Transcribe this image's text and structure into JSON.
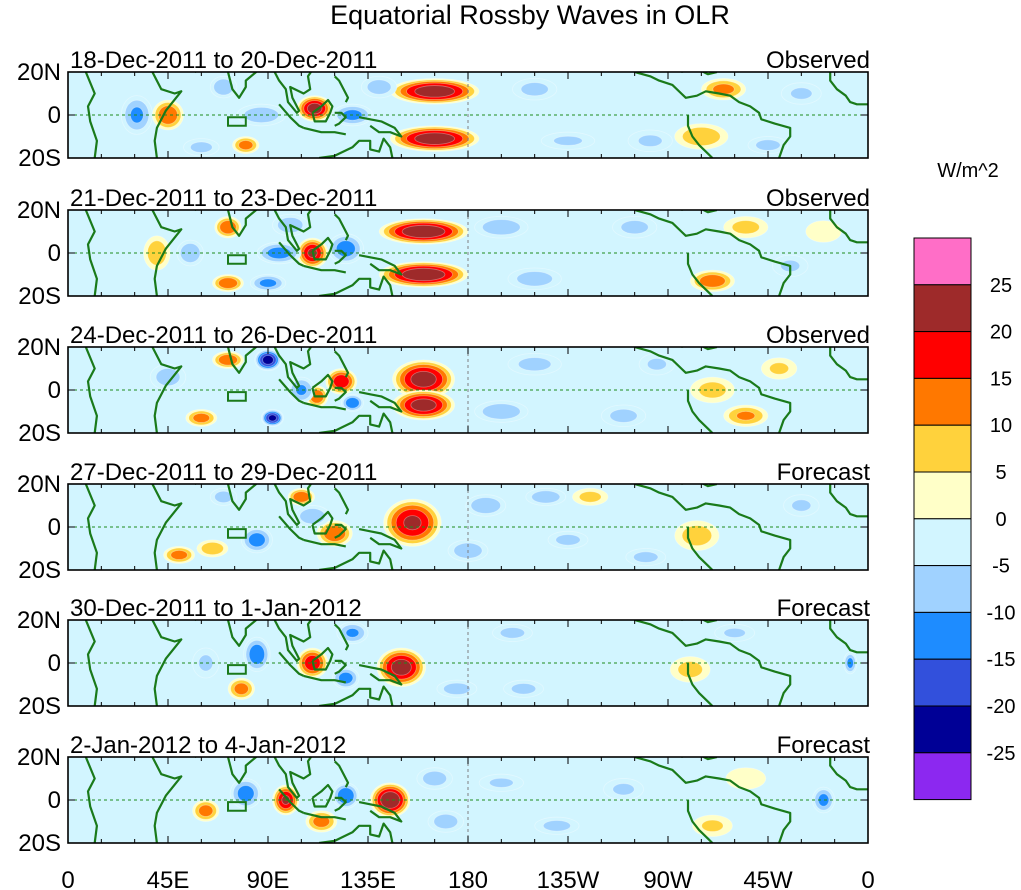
{
  "chart_data": {
    "type": "heatmap",
    "title": "Equatorial Rossby Waves in OLR",
    "units_label": "W/m^2",
    "x_ticks": [
      "0",
      "45E",
      "90E",
      "135E",
      "180",
      "135W",
      "90W",
      "45W",
      "0"
    ],
    "x_range_deg": [
      0,
      360
    ],
    "y_ticks": [
      "20N",
      "0",
      "20S"
    ],
    "y_range_deg": [
      -20,
      20
    ],
    "colorbar": {
      "levels": [
        "25",
        "20",
        "15",
        "10",
        "5",
        "0",
        "-5",
        "-10",
        "-15",
        "-20",
        "-25"
      ],
      "colors": [
        "#ff6ec7",
        "#9e2a2a",
        "#ff0000",
        "#ff7800",
        "#ffd23c",
        "#ffffc8",
        "#d2f5ff",
        "#a0d2ff",
        "#1e8cff",
        "#3250dc",
        "#000096",
        "#8c28f0"
      ]
    },
    "panels": [
      {
        "period": "18-Dec-2011 to 20-Dec-2011",
        "kind": "Observed",
        "blobs": [
          [
            165,
            11,
            20,
            6,
            23
          ],
          [
            165,
            -11,
            20,
            6,
            23
          ],
          [
            111,
            3,
            8,
            6,
            22
          ],
          [
            45,
            0,
            7,
            7,
            14
          ],
          [
            31,
            0,
            7,
            9,
            -10
          ],
          [
            70,
            13,
            6,
            5,
            -9
          ],
          [
            87,
            0,
            11,
            5,
            -8
          ],
          [
            128,
            0,
            9,
            5,
            -11
          ],
          [
            140,
            13,
            8,
            5,
            -7
          ],
          [
            60,
            -15,
            8,
            4,
            -6
          ],
          [
            80,
            -14,
            6,
            4,
            12
          ],
          [
            210,
            12,
            10,
            5,
            -6
          ],
          [
            225,
            -12,
            12,
            4,
            -5
          ],
          [
            262,
            -12,
            10,
            5,
            -5
          ],
          [
            285,
            -10,
            12,
            6,
            8
          ],
          [
            295,
            12,
            10,
            5,
            11
          ],
          [
            315,
            -14,
            9,
            4,
            -6
          ],
          [
            330,
            10,
            9,
            5,
            -5
          ]
        ]
      },
      {
        "period": "21-Dec-2011 to 23-Dec-2011",
        "kind": "Observed",
        "blobs": [
          [
            160,
            10,
            20,
            6,
            24
          ],
          [
            160,
            -10,
            20,
            6,
            24
          ],
          [
            110,
            0,
            7,
            7,
            20
          ],
          [
            40,
            0,
            6,
            8,
            8
          ],
          [
            55,
            0,
            6,
            6,
            -9
          ],
          [
            72,
            12,
            6,
            5,
            14
          ],
          [
            72,
            -14,
            7,
            4,
            14
          ],
          [
            95,
            0,
            10,
            5,
            -12
          ],
          [
            125,
            2,
            8,
            7,
            -12
          ],
          [
            90,
            -14,
            8,
            4,
            -11
          ],
          [
            100,
            13,
            8,
            5,
            -8
          ],
          [
            195,
            12,
            12,
            5,
            -8
          ],
          [
            210,
            -12,
            12,
            5,
            -7
          ],
          [
            255,
            12,
            10,
            5,
            -6
          ],
          [
            290,
            -13,
            10,
            5,
            13
          ],
          [
            305,
            12,
            10,
            5,
            6
          ],
          [
            325,
            -6,
            8,
            5,
            -5
          ],
          [
            340,
            10,
            8,
            5,
            4
          ]
        ]
      },
      {
        "period": "24-Dec-2011 to 26-Dec-2011",
        "kind": "Observed",
        "blobs": [
          [
            160,
            5,
            14,
            9,
            22
          ],
          [
            160,
            -7,
            14,
            7,
            22
          ],
          [
            123,
            4,
            7,
            6,
            18
          ],
          [
            112,
            -3,
            5,
            5,
            14
          ],
          [
            72,
            14,
            7,
            4,
            14
          ],
          [
            60,
            -13,
            7,
            4,
            12
          ],
          [
            90,
            14,
            6,
            5,
            -22
          ],
          [
            92,
            -13,
            5,
            4,
            -21
          ],
          [
            128,
            -6,
            5,
            4,
            -14
          ],
          [
            45,
            6,
            8,
            6,
            -7
          ],
          [
            105,
            0,
            6,
            6,
            -10
          ],
          [
            195,
            -10,
            12,
            5,
            -8
          ],
          [
            210,
            12,
            12,
            5,
            -6
          ],
          [
            250,
            -12,
            10,
            5,
            -6
          ],
          [
            265,
            12,
            8,
            5,
            -5
          ],
          [
            305,
            -12,
            10,
            5,
            10
          ],
          [
            290,
            0,
            10,
            6,
            6
          ],
          [
            320,
            10,
            8,
            5,
            5
          ]
        ]
      },
      {
        "period": "27-Dec-2011 to 29-Dec-2011",
        "kind": "Forecast",
        "blobs": [
          [
            155,
            2,
            13,
            11,
            20
          ],
          [
            120,
            -3,
            8,
            6,
            14
          ],
          [
            105,
            14,
            6,
            4,
            14
          ],
          [
            85,
            -6,
            7,
            6,
            -12
          ],
          [
            110,
            5,
            8,
            5,
            -8
          ],
          [
            70,
            14,
            6,
            4,
            -7
          ],
          [
            65,
            -10,
            7,
            4,
            8
          ],
          [
            50,
            -13,
            7,
            4,
            12
          ],
          [
            188,
            10,
            9,
            5,
            -9
          ],
          [
            180,
            -11,
            9,
            5,
            -8
          ],
          [
            215,
            14,
            9,
            4,
            -8
          ],
          [
            235,
            14,
            8,
            4,
            6
          ],
          [
            225,
            -6,
            9,
            4,
            -6
          ],
          [
            260,
            -14,
            9,
            4,
            -6
          ],
          [
            283,
            -4,
            10,
            7,
            7
          ],
          [
            330,
            10,
            8,
            5,
            -5
          ]
        ]
      },
      {
        "period": "30-Dec-2011 to 1-Jan-2012",
        "kind": "Forecast",
        "blobs": [
          [
            150,
            -2,
            11,
            9,
            22
          ],
          [
            110,
            0,
            7,
            7,
            18
          ],
          [
            128,
            14,
            7,
            5,
            -10
          ],
          [
            125,
            -7,
            6,
            5,
            -12
          ],
          [
            85,
            4,
            6,
            8,
            -13
          ],
          [
            78,
            -12,
            6,
            5,
            12
          ],
          [
            62,
            0,
            6,
            7,
            -5
          ],
          [
            175,
            -12,
            9,
            4,
            -7
          ],
          [
            200,
            14,
            9,
            4,
            -6
          ],
          [
            205,
            -12,
            9,
            4,
            -6
          ],
          [
            280,
            -3,
            9,
            6,
            6
          ],
          [
            300,
            14,
            9,
            4,
            -5
          ],
          [
            352,
            0,
            3,
            5,
            -11
          ]
        ]
      },
      {
        "period": "2-Jan-2012 to 4-Jan-2012",
        "kind": "Forecast",
        "blobs": [
          [
            145,
            0,
            9,
            8,
            24
          ],
          [
            98,
            0,
            6,
            7,
            20
          ],
          [
            125,
            2,
            6,
            6,
            -14
          ],
          [
            80,
            3,
            7,
            7,
            -12
          ],
          [
            62,
            -5,
            6,
            5,
            12
          ],
          [
            114,
            -10,
            7,
            5,
            12
          ],
          [
            165,
            10,
            8,
            5,
            -7
          ],
          [
            170,
            -10,
            8,
            5,
            -7
          ],
          [
            195,
            8,
            10,
            4,
            -5
          ],
          [
            220,
            -12,
            10,
            4,
            -6
          ],
          [
            250,
            5,
            9,
            5,
            -5
          ],
          [
            290,
            -12,
            9,
            5,
            5
          ],
          [
            305,
            10,
            9,
            5,
            4
          ],
          [
            340,
            0,
            5,
            6,
            -11
          ]
        ]
      }
    ]
  }
}
